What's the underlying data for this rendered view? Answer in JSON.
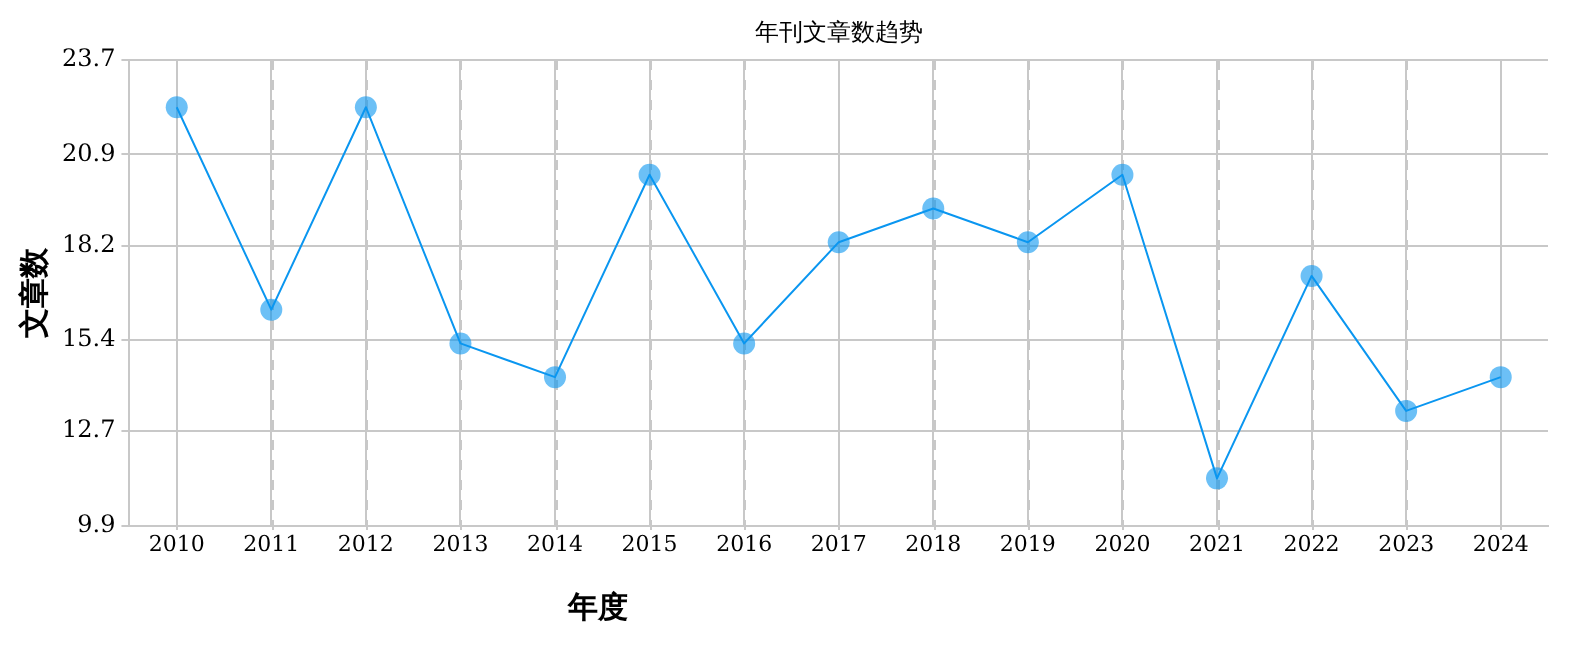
{
  "chart_data": {
    "type": "line",
    "title": "年刊文章数趋势",
    "xlabel": "年度",
    "ylabel": "文章数",
    "categories": [
      "2010",
      "2011",
      "2012",
      "2013",
      "2014",
      "2015",
      "2016",
      "2017",
      "2018",
      "2019",
      "2020",
      "2021",
      "2022",
      "2023",
      "2024"
    ],
    "series": [
      {
        "color": "#0a96f0",
        "values": [
          22.3,
          16.3,
          22.3,
          15.3,
          14.3,
          20.3,
          15.3,
          18.3,
          19.3,
          18.3,
          20.3,
          11.3,
          17.3,
          13.3,
          14.3
        ]
      }
    ],
    "ylim": [
      9.9,
      23.7
    ],
    "yticks": [
      9.9,
      12.7,
      15.4,
      18.2,
      20.9,
      23.7
    ],
    "grid": true,
    "marker": "circle",
    "line_style": "solid"
  }
}
